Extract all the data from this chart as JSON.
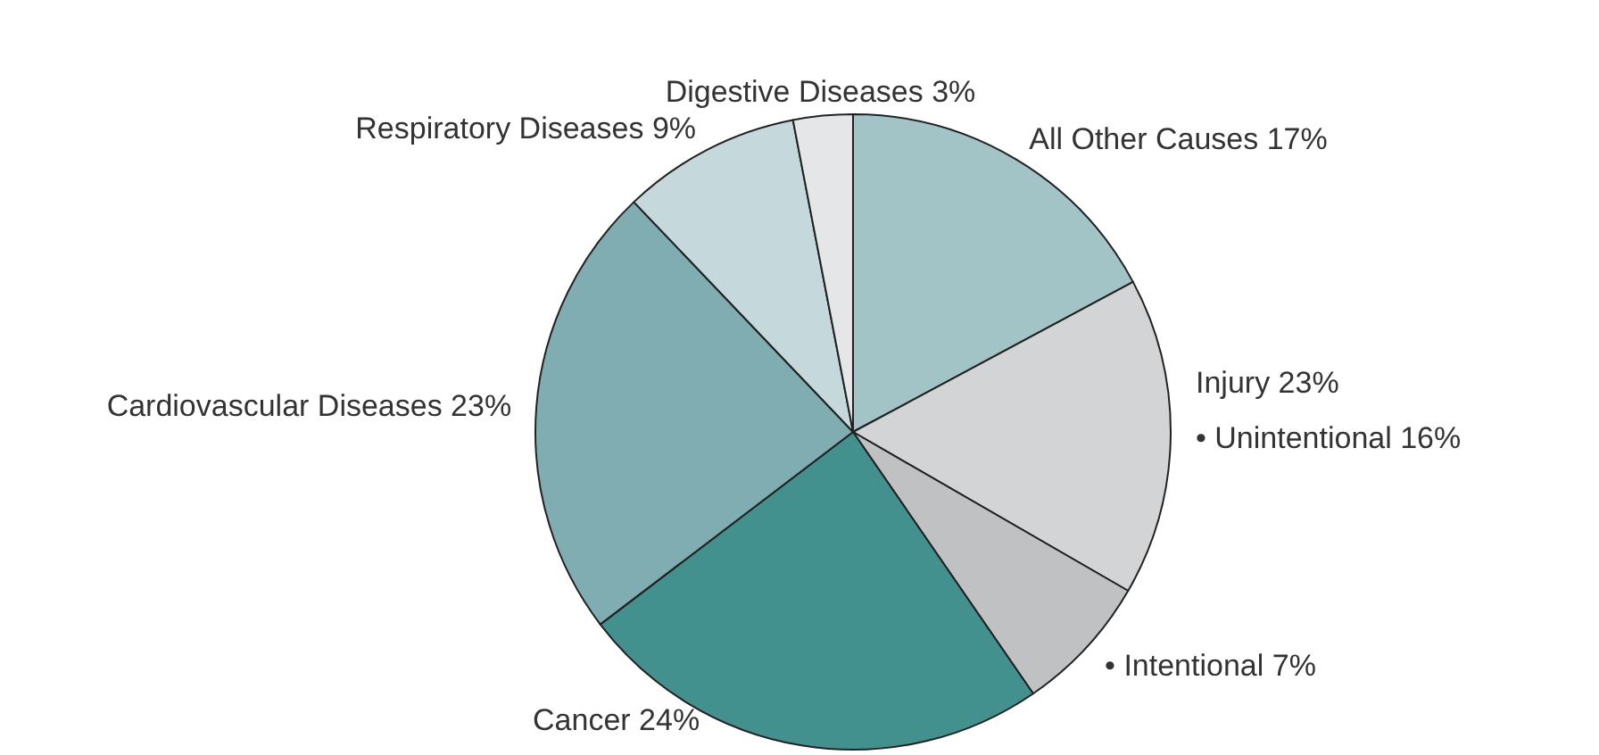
{
  "chart_data": {
    "type": "pie",
    "categories": [
      "All Other Causes 17%",
      "• Unintentional 16%",
      "• Intentional 7%",
      "Cancer 24%",
      "Cardiovascular Diseases 23%",
      "Respiratory Diseases 9%",
      "Digestive Diseases 3%"
    ],
    "values": [
      17,
      16,
      7,
      24,
      23,
      9,
      3
    ],
    "colors": [
      "#a3c4c6",
      "#d3d4d6",
      "#c0c1c3",
      "#43918f",
      "#80adb1",
      "#c5d9dc",
      "#e5e6e8"
    ],
    "annotations": [
      "Injury 23%"
    ]
  }
}
